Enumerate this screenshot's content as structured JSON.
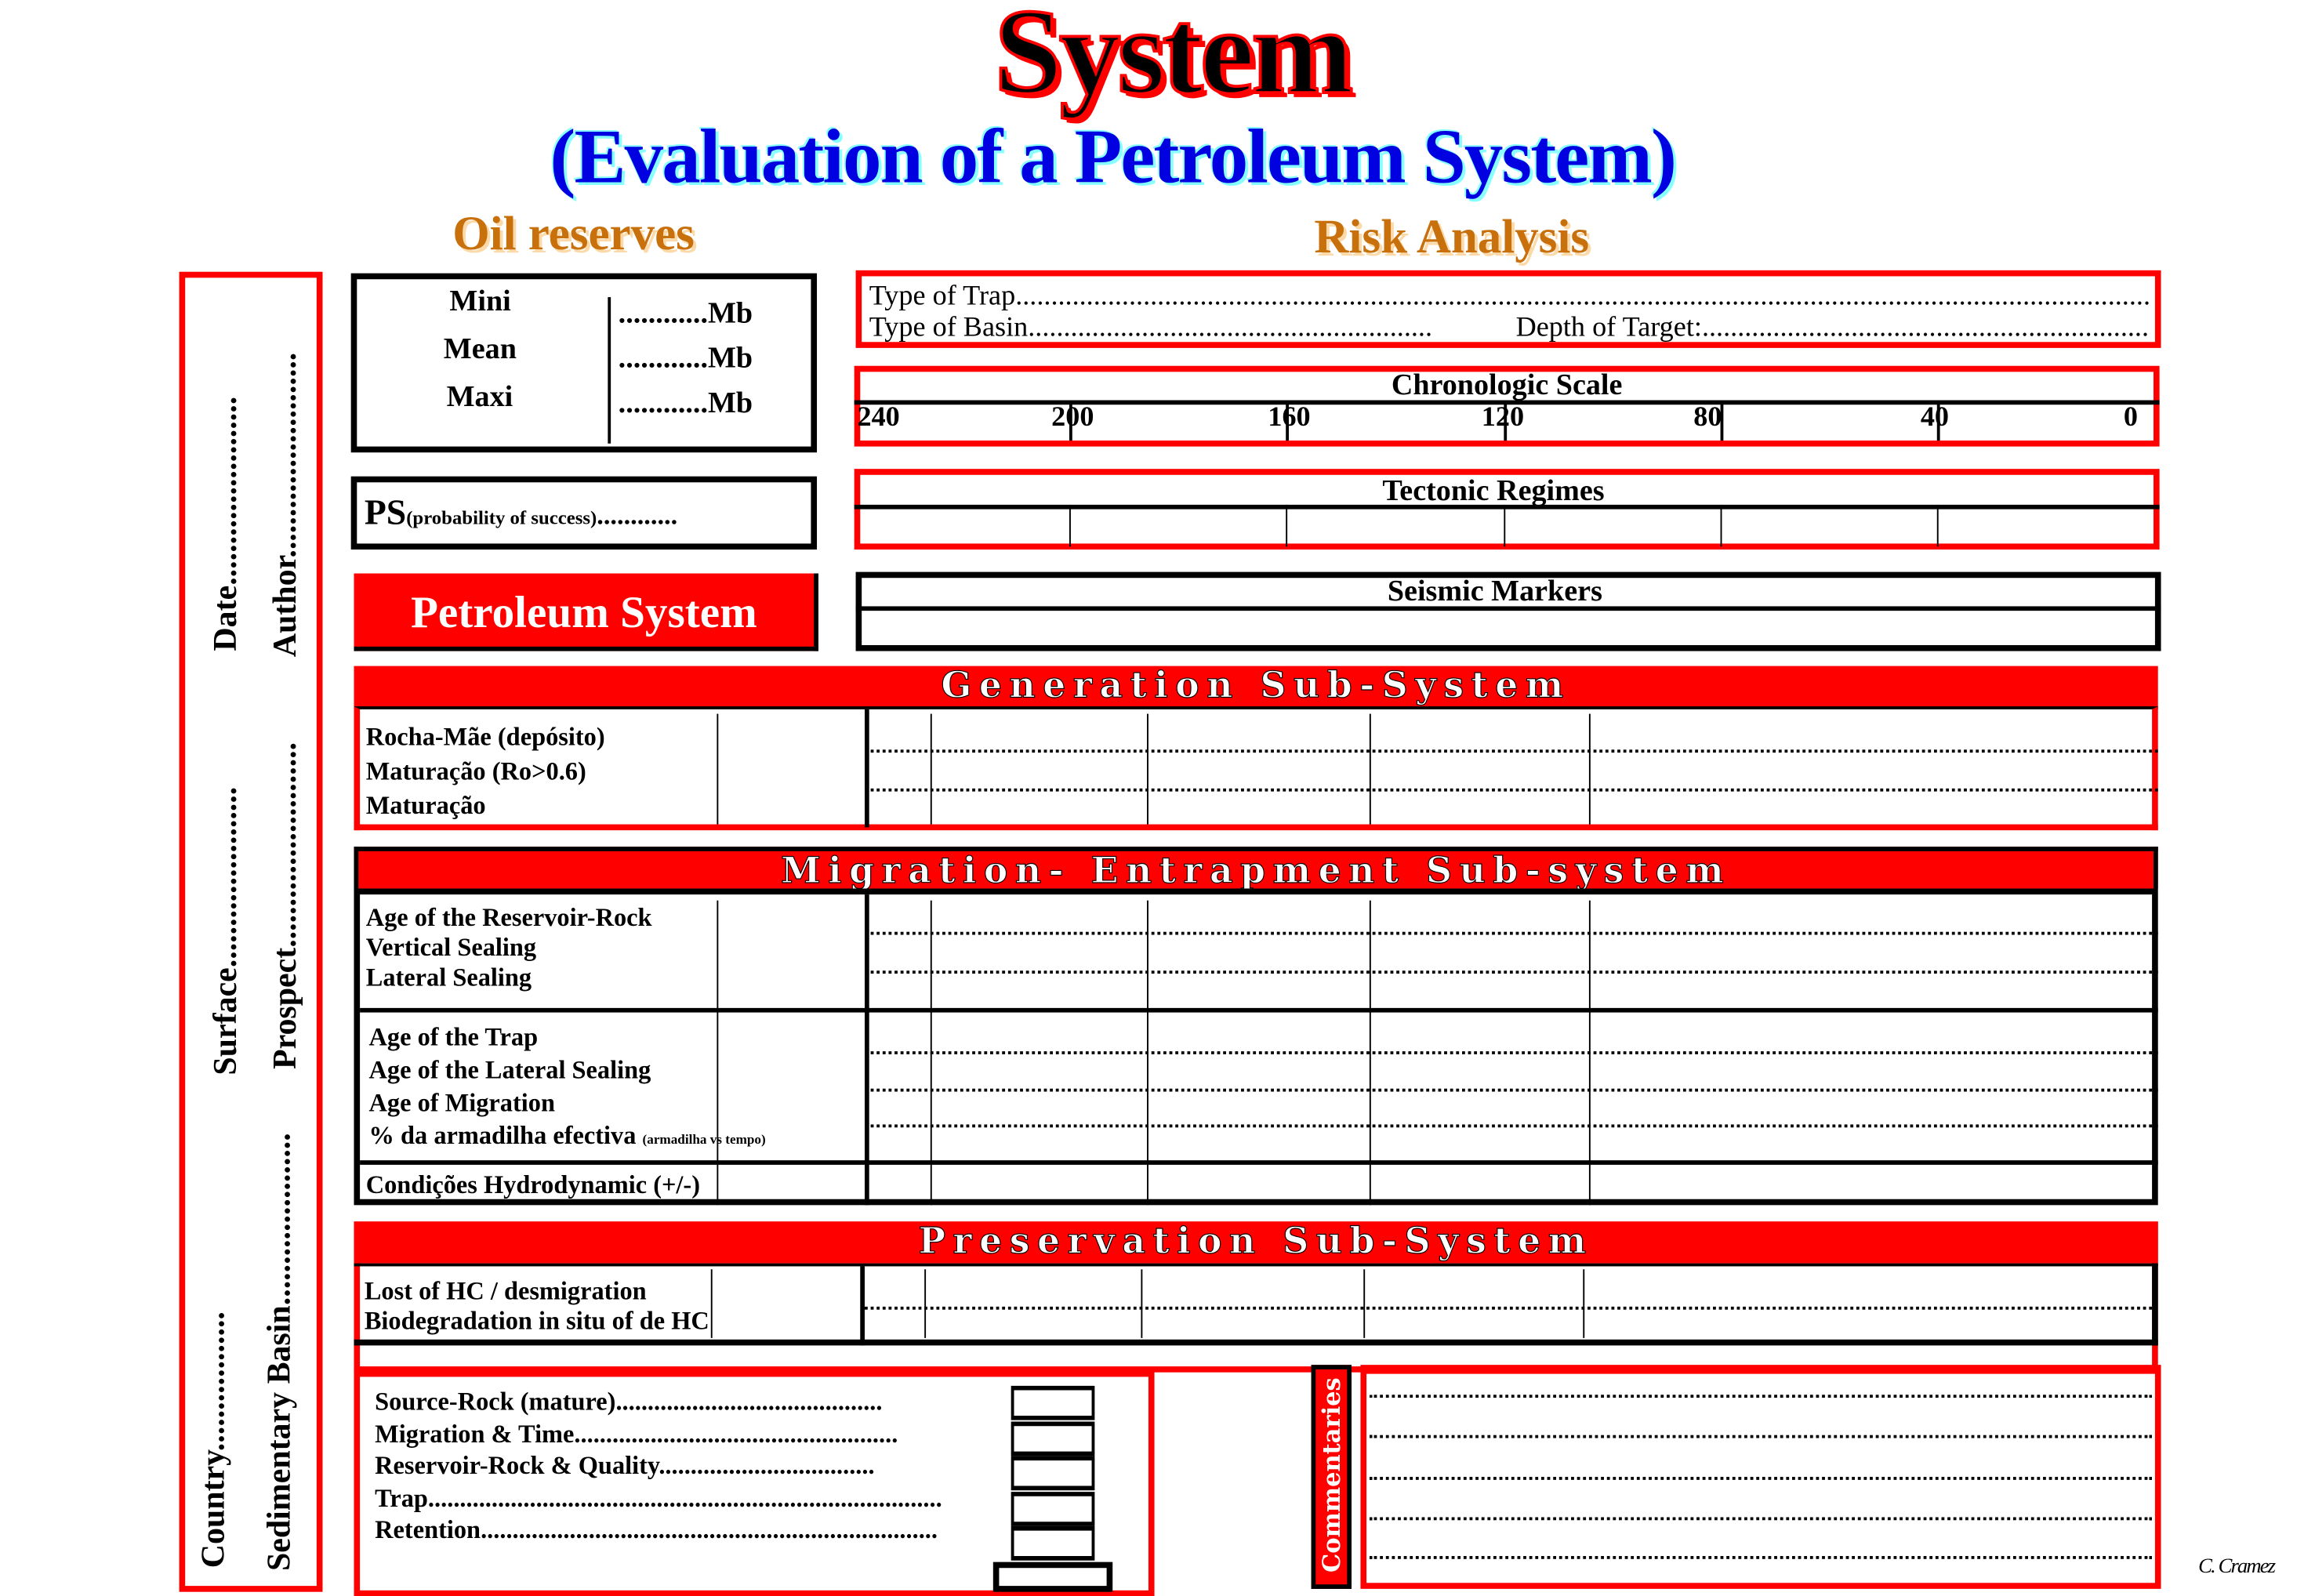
{
  "title": "System",
  "subtitle": "(Evaluation of a Petroleum System)",
  "oil_reserves": {
    "heading": "Oil reserves",
    "rows": [
      {
        "label": "Mini",
        "value": "............Mb"
      },
      {
        "label": "Mean",
        "value": "............Mb"
      },
      {
        "label": "Maxi",
        "value": "............Mb"
      }
    ]
  },
  "risk_analysis": {
    "heading": "Risk Analysis"
  },
  "side_panel": {
    "date": "Date.......................",
    "surface": "Surface......................",
    "country": "Country.................",
    "author": "Author.........................",
    "prospect": "Prospect.........................",
    "sedimentary_basin": "Sedimentary Basin....................."
  },
  "ps": {
    "label": "PS",
    "note": "(probability of success)",
    "dots": "............"
  },
  "petroleum_system": "Petroleum System",
  "trap": {
    "type_of_trap": "Type of Trap......................................................................................................................................................................................",
    "type_of_basin": "Type of Basin.........................................................",
    "depth_of_target": "Depth of Target:..............................................................."
  },
  "chronologic_scale": {
    "title": "Chronologic Scale",
    "ticks": [
      "240",
      "200",
      "160",
      "120",
      "80",
      "40",
      "0"
    ]
  },
  "tectonic_regimes": {
    "title": "Tectonic Regimes"
  },
  "seismic_markers": {
    "title": "Seismic Markers"
  },
  "generation": {
    "title": "Generation Sub-System",
    "rows": [
      "Rocha-Mãe (depósito)",
      "Maturação (Ro>0.6)",
      "Maturação"
    ]
  },
  "migration": {
    "title": "Migration- Entrapment Sub-system",
    "group1": [
      "Age of the Reservoir-Rock",
      "Vertical Sealing",
      "Lateral Sealing"
    ],
    "group2": [
      "Age of the Trap",
      "Age of the Lateral Sealing",
      "Age of Migration",
      "% da armadilha efectiva"
    ],
    "group2_note": "(armadilha vs tempo)",
    "hydro": "Condições Hydrodynamic (+/-)"
  },
  "preservation": {
    "title": "Preservation Sub-System",
    "rows": [
      "Lost of HC / desmigration",
      "Biodegradation in situ of de HC"
    ]
  },
  "risk_factors": [
    "Source-Rock (mature)..........................................",
    "Migration & Time...................................................",
    "Reservoir-Rock & Quality..................................",
    "Trap.................................................................................",
    "Retention........................................................................"
  ],
  "commentaries": "Commentaries",
  "author_credit": "C. Cramez",
  "colors": {
    "frame_red": "#ff0000",
    "title_blue": "#0000e0",
    "heading_orange": "#c8700c"
  }
}
